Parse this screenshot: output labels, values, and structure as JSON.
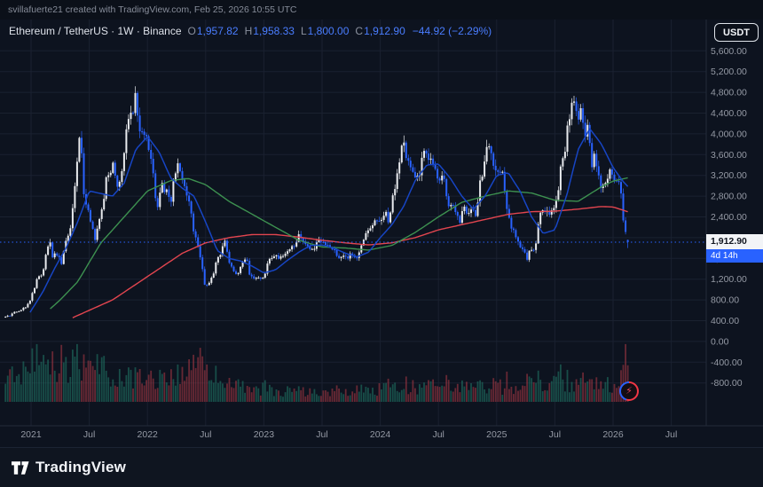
{
  "attribution": "svillafuerte21 created with TradingView.com, Feb 25, 2026 10:55 UTC",
  "header": {
    "title": "Ethereum / TetherUS · 1W · Binance",
    "ohlc": [
      {
        "label": "O",
        "value": "1,957.82"
      },
      {
        "label": "H",
        "value": "1,958.33"
      },
      {
        "label": "L",
        "value": "1,800.00"
      },
      {
        "label": "C",
        "value": "1,912.90"
      }
    ],
    "change": "−44.92 (−2.29%)"
  },
  "currency_button": "USDT",
  "price_scale": {
    "ticks": [
      {
        "label": "5,600.00",
        "value": 5600
      },
      {
        "label": "5,200.00",
        "value": 5200
      },
      {
        "label": "4,800.00",
        "value": 4800
      },
      {
        "label": "4,400.00",
        "value": 4400
      },
      {
        "label": "4,000.00",
        "value": 4000
      },
      {
        "label": "3,600.00",
        "value": 3600
      },
      {
        "label": "3,200.00",
        "value": 3200
      },
      {
        "label": "2,800.00",
        "value": 2800
      },
      {
        "label": "2,400.00",
        "value": 2400
      },
      {
        "label": "2,000.00",
        "value": 2000
      },
      {
        "label": "1,600.00",
        "value": 1600
      },
      {
        "label": "1,200.00",
        "value": 1200
      },
      {
        "label": "800.00",
        "value": 800
      },
      {
        "label": "400.00",
        "value": 400
      },
      {
        "label": "0.00",
        "value": 0
      },
      {
        "label": "-400.00",
        "value": -400
      },
      {
        "label": "-800.00",
        "value": -800
      }
    ]
  },
  "time_scale": {
    "ticks": [
      {
        "label": "2021",
        "t": 2021.0
      },
      {
        "label": "Jul",
        "t": 2021.5
      },
      {
        "label": "2022",
        "t": 2022.0
      },
      {
        "label": "Jul",
        "t": 2022.5
      },
      {
        "label": "2023",
        "t": 2023.0
      },
      {
        "label": "Jul",
        "t": 2023.5
      },
      {
        "label": "2024",
        "t": 2024.0
      },
      {
        "label": "Jul",
        "t": 2024.5
      },
      {
        "label": "2025",
        "t": 2025.0
      },
      {
        "label": "Jul",
        "t": 2025.5
      },
      {
        "label": "2026",
        "t": 2026.0
      },
      {
        "label": "Jul",
        "t": 2026.5
      }
    ]
  },
  "last_price_badge": {
    "price": "1,912.90",
    "countdown": "4d 14h"
  },
  "footer": {
    "brand": "TradingView"
  },
  "colors": {
    "background": "#0d131f",
    "grid": "#1a2130",
    "axis_border": "#222b3a",
    "axis_text": "#959aa5",
    "candle_up": "#e9ebef",
    "candle_down": "#2962ff",
    "ma_fast": "#1745c4",
    "ma_mid": "#3d9150",
    "ma_slow": "#e2454f",
    "volume_up": "rgba(32,116,100,0.6)",
    "volume_down": "rgba(178,58,70,0.55)",
    "accent_blue": "#2962ff"
  },
  "chart_data": {
    "type": "candlestick",
    "symbol": "ETHUSDT",
    "interval": "1W",
    "x_domain": [
      2020.733,
      2026.8
    ],
    "price_axis_range": [
      -800,
      5600
    ],
    "start_t": 2020.78,
    "end_t": 2026.145,
    "last_price": 1912.9,
    "last_candle": {
      "o": 1957.82,
      "h": 1958.33,
      "l": 1800.0,
      "c": 1912.9
    },
    "close_anchors": [
      [
        2020.78,
        470
      ],
      [
        2020.82,
        500
      ],
      [
        2020.86,
        560
      ],
      [
        2020.9,
        600
      ],
      [
        2020.94,
        640
      ],
      [
        2020.98,
        730
      ],
      [
        2021.02,
        980
      ],
      [
        2021.06,
        1250
      ],
      [
        2021.1,
        1300
      ],
      [
        2021.13,
        1750
      ],
      [
        2021.16,
        1950
      ],
      [
        2021.18,
        1600
      ],
      [
        2021.22,
        1700
      ],
      [
        2021.26,
        1500
      ],
      [
        2021.3,
        1950
      ],
      [
        2021.34,
        2250
      ],
      [
        2021.37,
        2800
      ],
      [
        2021.4,
        3500
      ],
      [
        2021.42,
        4100
      ],
      [
        2021.44,
        3400
      ],
      [
        2021.46,
        2500
      ],
      [
        2021.48,
        2700
      ],
      [
        2021.52,
        2250
      ],
      [
        2021.55,
        1950
      ],
      [
        2021.58,
        2300
      ],
      [
        2021.62,
        2650
      ],
      [
        2021.65,
        3200
      ],
      [
        2021.69,
        3250
      ],
      [
        2021.71,
        3450
      ],
      [
        2021.73,
        3000
      ],
      [
        2021.76,
        3050
      ],
      [
        2021.79,
        3450
      ],
      [
        2021.82,
        4050
      ],
      [
        2021.85,
        4550
      ],
      [
        2021.87,
        4350
      ],
      [
        2021.89,
        4800
      ],
      [
        2021.91,
        4550
      ],
      [
        2021.93,
        4100
      ],
      [
        2021.97,
        4050
      ],
      [
        2022.01,
        3700
      ],
      [
        2022.05,
        3200
      ],
      [
        2022.08,
        2550
      ],
      [
        2022.12,
        3000
      ],
      [
        2022.16,
        2900
      ],
      [
        2022.2,
        2650
      ],
      [
        2022.24,
        3300
      ],
      [
        2022.27,
        3450
      ],
      [
        2022.31,
        3000
      ],
      [
        2022.35,
        2800
      ],
      [
        2022.38,
        2350
      ],
      [
        2022.41,
        2000
      ],
      [
        2022.44,
        1800
      ],
      [
        2022.46,
        1550
      ],
      [
        2022.49,
        1100
      ],
      [
        2022.52,
        1070
      ],
      [
        2022.56,
        1250
      ],
      [
        2022.6,
        1600
      ],
      [
        2022.63,
        1700
      ],
      [
        2022.66,
        1950
      ],
      [
        2022.7,
        1550
      ],
      [
        2022.74,
        1350
      ],
      [
        2022.78,
        1300
      ],
      [
        2022.82,
        1550
      ],
      [
        2022.85,
        1620
      ],
      [
        2022.88,
        1250
      ],
      [
        2022.92,
        1200
      ],
      [
        2022.96,
        1220
      ],
      [
        2023.0,
        1220
      ],
      [
        2023.04,
        1580
      ],
      [
        2023.08,
        1660
      ],
      [
        2023.13,
        1600
      ],
      [
        2023.17,
        1700
      ],
      [
        2023.22,
        1780
      ],
      [
        2023.26,
        1850
      ],
      [
        2023.3,
        2080
      ],
      [
        2023.34,
        1900
      ],
      [
        2023.38,
        1820
      ],
      [
        2023.42,
        1740
      ],
      [
        2023.46,
        1900
      ],
      [
        2023.5,
        1930
      ],
      [
        2023.54,
        1880
      ],
      [
        2023.58,
        1840
      ],
      [
        2023.63,
        1650
      ],
      [
        2023.67,
        1630
      ],
      [
        2023.71,
        1600
      ],
      [
        2023.75,
        1680
      ],
      [
        2023.79,
        1560
      ],
      [
        2023.83,
        1800
      ],
      [
        2023.88,
        2060
      ],
      [
        2023.92,
        2260
      ],
      [
        2023.96,
        2300
      ],
      [
        2024.0,
        2290
      ],
      [
        2024.04,
        2510
      ],
      [
        2024.07,
        2310
      ],
      [
        2024.11,
        2800
      ],
      [
        2024.15,
        3250
      ],
      [
        2024.19,
        3900
      ],
      [
        2024.22,
        3550
      ],
      [
        2024.26,
        3350
      ],
      [
        2024.3,
        3100
      ],
      [
        2024.34,
        3250
      ],
      [
        2024.38,
        3750
      ],
      [
        2024.42,
        3500
      ],
      [
        2024.46,
        3400
      ],
      [
        2024.5,
        3100
      ],
      [
        2024.54,
        3260
      ],
      [
        2024.58,
        2650
      ],
      [
        2024.61,
        2600
      ],
      [
        2024.64,
        2550
      ],
      [
        2024.68,
        2300
      ],
      [
        2024.72,
        2650
      ],
      [
        2024.75,
        2450
      ],
      [
        2024.79,
        2550
      ],
      [
        2024.83,
        2450
      ],
      [
        2024.86,
        3100
      ],
      [
        2024.89,
        3350
      ],
      [
        2024.91,
        3650
      ],
      [
        2024.93,
        3900
      ],
      [
        2024.95,
        3650
      ],
      [
        2024.97,
        3400
      ],
      [
        2025.01,
        3350
      ],
      [
        2025.05,
        3200
      ],
      [
        2025.08,
        2650
      ],
      [
        2025.12,
        2200
      ],
      [
        2025.15,
        2100
      ],
      [
        2025.18,
        1900
      ],
      [
        2025.22,
        1820
      ],
      [
        2025.26,
        1580
      ],
      [
        2025.29,
        1790
      ],
      [
        2025.33,
        1800
      ],
      [
        2025.37,
        2450
      ],
      [
        2025.41,
        2560
      ],
      [
        2025.45,
        2420
      ],
      [
        2025.49,
        2520
      ],
      [
        2025.53,
        2950
      ],
      [
        2025.56,
        3550
      ],
      [
        2025.59,
        3750
      ],
      [
        2025.61,
        4250
      ],
      [
        2025.64,
        4400
      ],
      [
        2025.66,
        4750
      ],
      [
        2025.68,
        4400
      ],
      [
        2025.7,
        4300
      ],
      [
        2025.72,
        4500
      ],
      [
        2025.74,
        4200
      ],
      [
        2025.76,
        4000
      ],
      [
        2025.78,
        4150
      ],
      [
        2025.8,
        3900
      ],
      [
        2025.82,
        3400
      ],
      [
        2025.84,
        3550
      ],
      [
        2025.86,
        3350
      ],
      [
        2025.88,
        3100
      ],
      [
        2025.9,
        2850
      ],
      [
        2025.92,
        3000
      ],
      [
        2025.94,
        3100
      ],
      [
        2025.96,
        3160
      ],
      [
        2025.98,
        3350
      ],
      [
        2026.0,
        3220
      ],
      [
        2026.02,
        3120
      ],
      [
        2026.04,
        3160
      ],
      [
        2026.06,
        3010
      ],
      [
        2026.08,
        2500
      ],
      [
        2026.1,
        2200
      ],
      [
        2026.12,
        2050
      ],
      [
        2026.14,
        1913
      ]
    ],
    "ma_fast_blue": [
      [
        2020.98,
        520
      ],
      [
        2021.1,
        950
      ],
      [
        2021.2,
        1400
      ],
      [
        2021.3,
        1800
      ],
      [
        2021.4,
        2300
      ],
      [
        2021.5,
        2900
      ],
      [
        2021.6,
        2850
      ],
      [
        2021.7,
        2800
      ],
      [
        2021.8,
        3050
      ],
      [
        2021.9,
        3700
      ],
      [
        2022.0,
        3950
      ],
      [
        2022.1,
        3650
      ],
      [
        2022.2,
        3150
      ],
      [
        2022.3,
        2950
      ],
      [
        2022.4,
        2800
      ],
      [
        2022.5,
        2300
      ],
      [
        2022.6,
        1750
      ],
      [
        2022.7,
        1600
      ],
      [
        2022.8,
        1550
      ],
      [
        2022.9,
        1450
      ],
      [
        2023.0,
        1320
      ],
      [
        2023.1,
        1380
      ],
      [
        2023.2,
        1560
      ],
      [
        2023.3,
        1720
      ],
      [
        2023.4,
        1850
      ],
      [
        2023.5,
        1860
      ],
      [
        2023.6,
        1800
      ],
      [
        2023.7,
        1700
      ],
      [
        2023.8,
        1630
      ],
      [
        2023.9,
        1720
      ],
      [
        2024.0,
        2000
      ],
      [
        2024.1,
        2250
      ],
      [
        2024.2,
        2600
      ],
      [
        2024.3,
        3100
      ],
      [
        2024.4,
        3400
      ],
      [
        2024.5,
        3420
      ],
      [
        2024.6,
        3150
      ],
      [
        2024.7,
        2800
      ],
      [
        2024.8,
        2550
      ],
      [
        2024.9,
        2800
      ],
      [
        2025.0,
        3200
      ],
      [
        2025.1,
        3250
      ],
      [
        2025.2,
        2900
      ],
      [
        2025.3,
        2400
      ],
      [
        2025.4,
        2080
      ],
      [
        2025.5,
        2150
      ],
      [
        2025.6,
        2800
      ],
      [
        2025.7,
        3700
      ],
      [
        2025.8,
        4100
      ],
      [
        2025.9,
        3800
      ],
      [
        2026.0,
        3350
      ],
      [
        2026.08,
        3100
      ],
      [
        2026.14,
        2950
      ]
    ],
    "ma_mid_green": [
      [
        2021.15,
        600
      ],
      [
        2021.25,
        800
      ],
      [
        2021.4,
        1150
      ],
      [
        2021.6,
        1900
      ],
      [
        2021.8,
        2400
      ],
      [
        2022.0,
        2900
      ],
      [
        2022.2,
        3100
      ],
      [
        2022.35,
        3140
      ],
      [
        2022.5,
        3020
      ],
      [
        2022.7,
        2700
      ],
      [
        2022.9,
        2450
      ],
      [
        2023.1,
        2200
      ],
      [
        2023.3,
        1950
      ],
      [
        2023.5,
        1820
      ],
      [
        2023.7,
        1800
      ],
      [
        2023.9,
        1760
      ],
      [
        2024.1,
        1850
      ],
      [
        2024.3,
        2100
      ],
      [
        2024.5,
        2400
      ],
      [
        2024.7,
        2680
      ],
      [
        2024.9,
        2800
      ],
      [
        2025.1,
        2900
      ],
      [
        2025.3,
        2860
      ],
      [
        2025.5,
        2720
      ],
      [
        2025.7,
        2700
      ],
      [
        2025.9,
        2980
      ],
      [
        2026.0,
        3090
      ],
      [
        2026.14,
        3160
      ]
    ],
    "ma_slow_red": [
      [
        2021.35,
        450
      ],
      [
        2021.5,
        600
      ],
      [
        2021.7,
        800
      ],
      [
        2021.9,
        1100
      ],
      [
        2022.1,
        1400
      ],
      [
        2022.3,
        1700
      ],
      [
        2022.5,
        1900
      ],
      [
        2022.7,
        2000
      ],
      [
        2022.9,
        2060
      ],
      [
        2023.1,
        2060
      ],
      [
        2023.3,
        2010
      ],
      [
        2023.5,
        1950
      ],
      [
        2023.7,
        1900
      ],
      [
        2023.9,
        1860
      ],
      [
        2024.1,
        1900
      ],
      [
        2024.3,
        2000
      ],
      [
        2024.5,
        2150
      ],
      [
        2024.7,
        2250
      ],
      [
        2024.9,
        2350
      ],
      [
        2025.1,
        2450
      ],
      [
        2025.3,
        2500
      ],
      [
        2025.5,
        2510
      ],
      [
        2025.7,
        2550
      ],
      [
        2025.9,
        2600
      ],
      [
        2026.0,
        2590
      ],
      [
        2026.14,
        2490
      ]
    ],
    "volume_anchors": [
      [
        2020.78,
        0.6
      ],
      [
        2021.0,
        0.8
      ],
      [
        2021.2,
        0.85
      ],
      [
        2021.38,
        1.0
      ],
      [
        2021.6,
        0.7
      ],
      [
        2021.9,
        0.55
      ],
      [
        2022.1,
        0.5
      ],
      [
        2022.46,
        0.8
      ],
      [
        2022.6,
        0.5
      ],
      [
        2022.9,
        0.38
      ],
      [
        2023.2,
        0.28
      ],
      [
        2023.6,
        0.26
      ],
      [
        2023.9,
        0.32
      ],
      [
        2024.2,
        0.4
      ],
      [
        2024.6,
        0.42
      ],
      [
        2024.9,
        0.38
      ],
      [
        2025.1,
        0.42
      ],
      [
        2025.3,
        0.46
      ],
      [
        2025.6,
        0.5
      ],
      [
        2025.9,
        0.42
      ],
      [
        2026.06,
        0.45
      ],
      [
        2026.1,
        0.95
      ],
      [
        2026.14,
        0.55
      ]
    ],
    "volume_spikes": [
      2021.36,
      2022.46,
      2026.1
    ]
  }
}
